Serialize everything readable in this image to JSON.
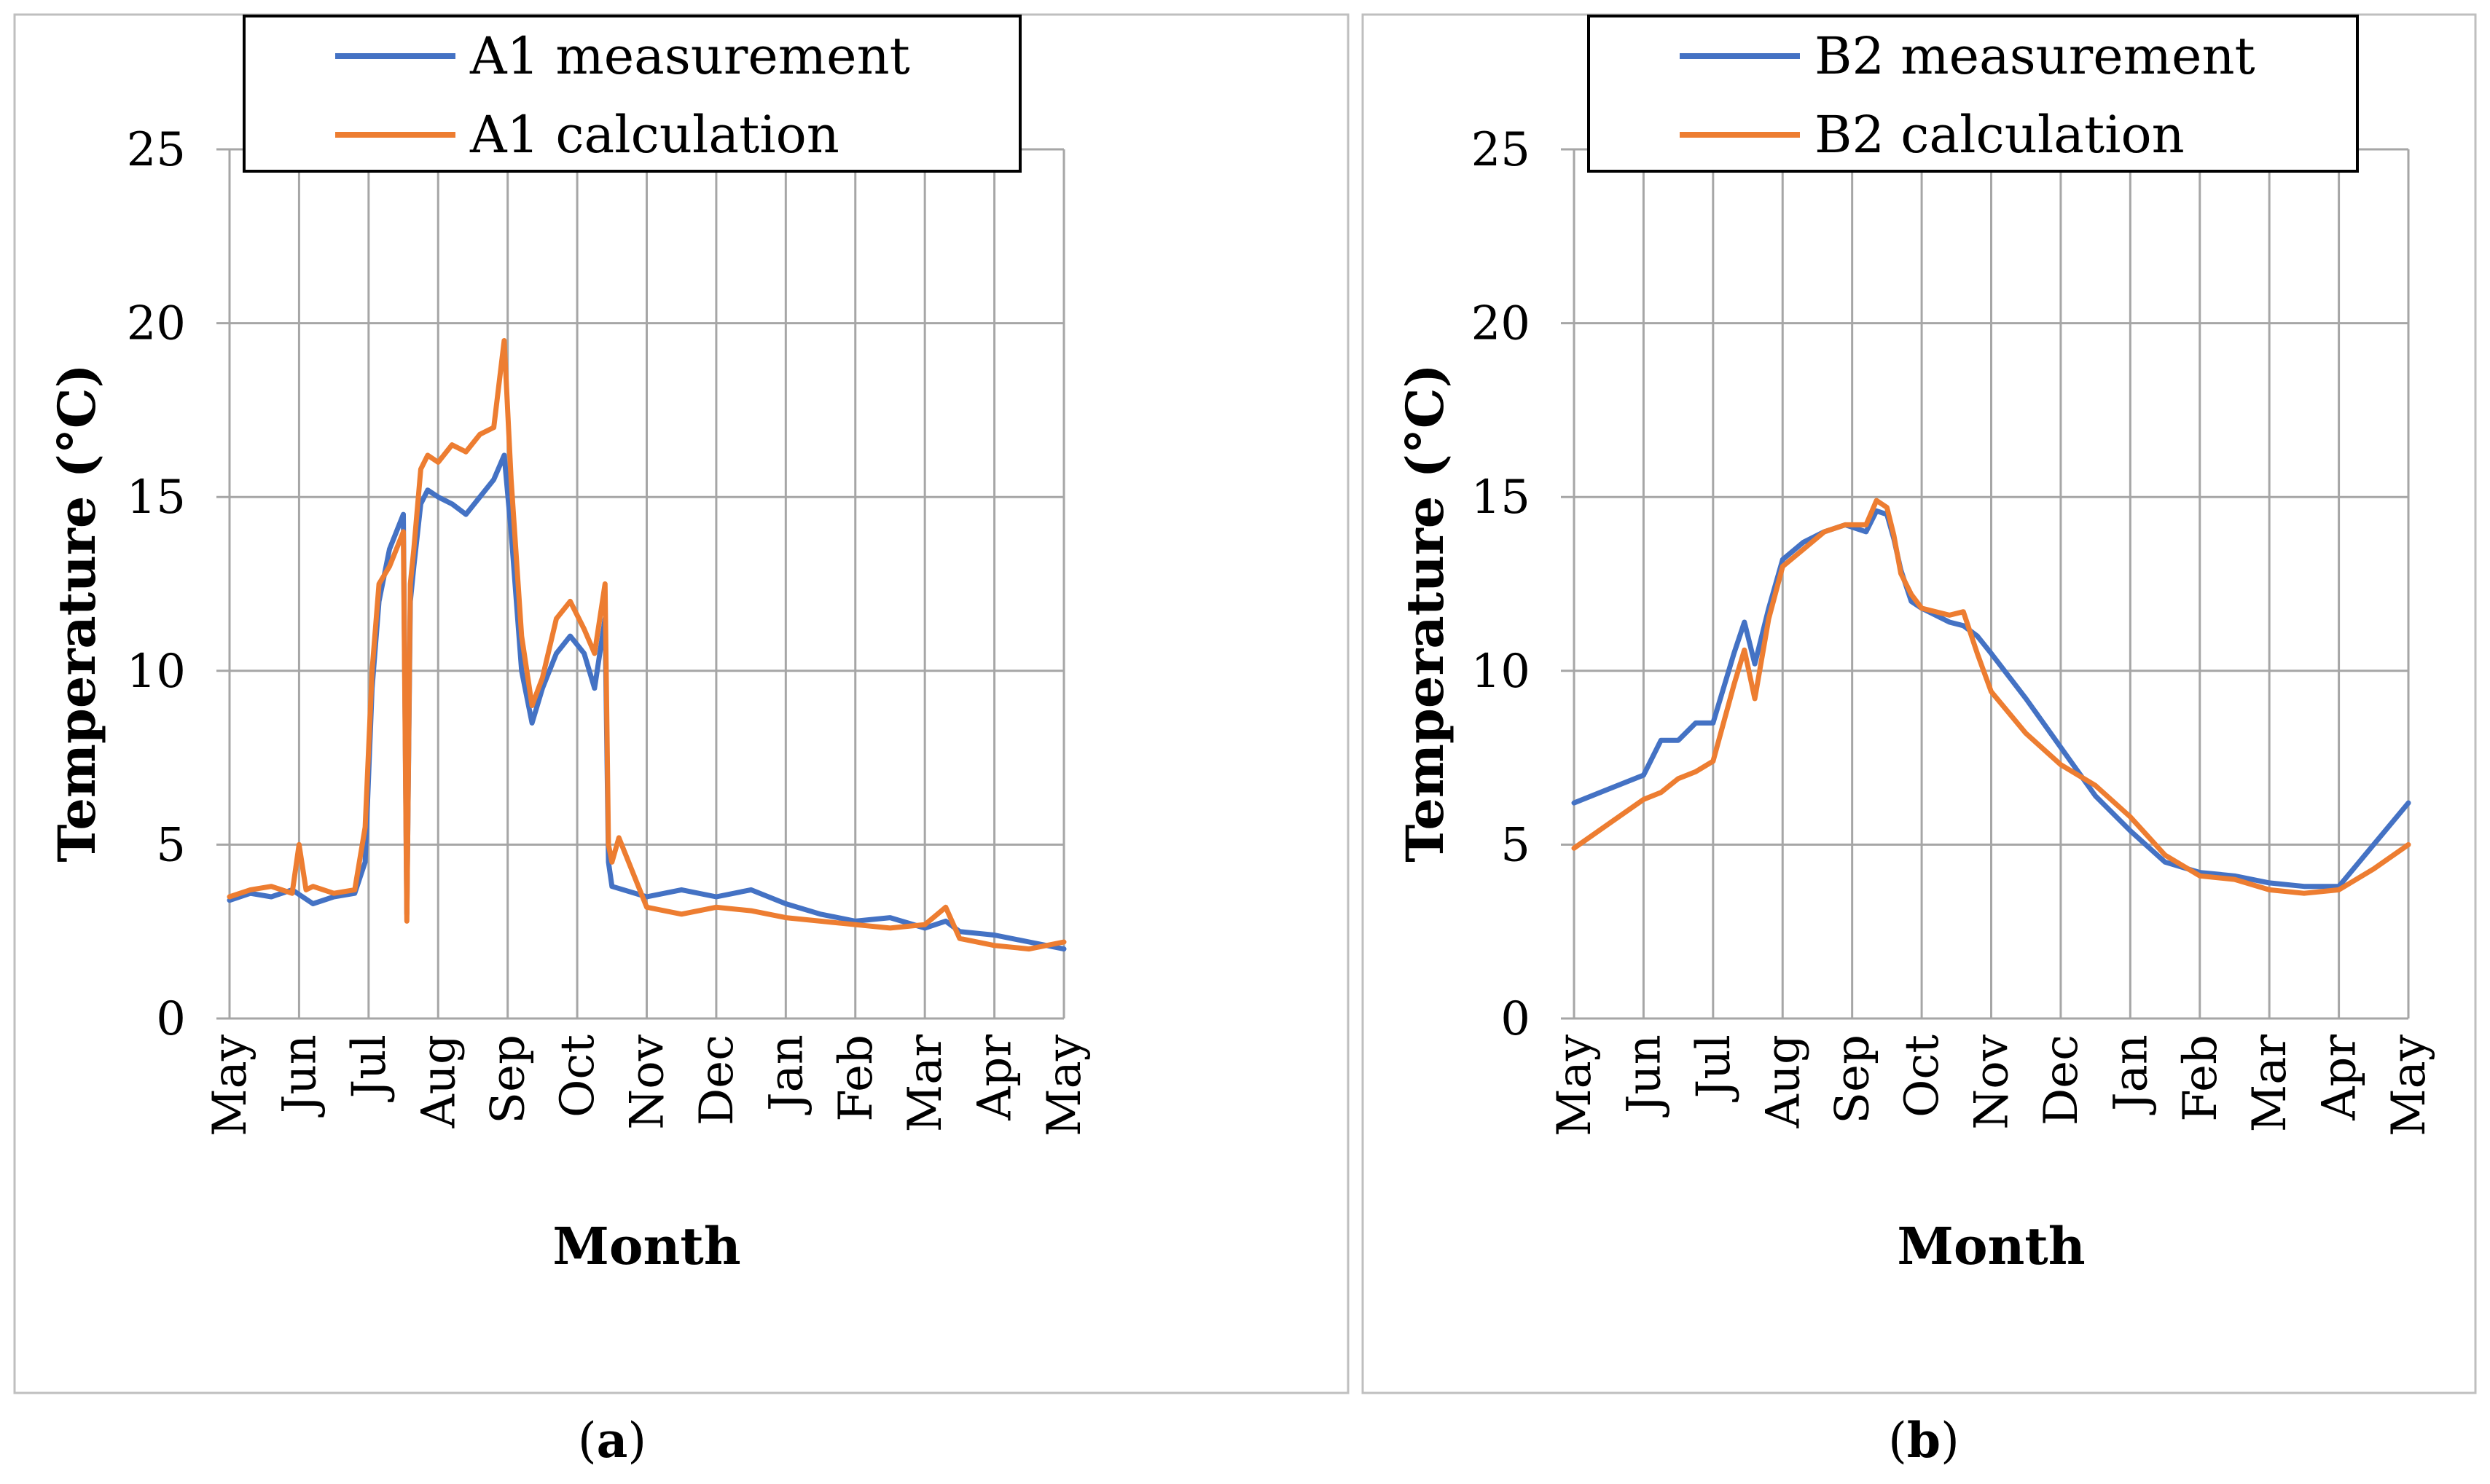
{
  "chart_data": [
    {
      "type": "line",
      "panel_label": "a",
      "xlabel": "Month",
      "ylabel": "Temperature (°C)",
      "ylim": [
        0,
        25
      ],
      "yticks": [
        0,
        5,
        10,
        15,
        20,
        25
      ],
      "x_ticks": [
        "May",
        "Jun",
        "Jul",
        "Aug",
        "Sep",
        "Oct",
        "Nov",
        "Dec",
        "Jan",
        "Feb",
        "Mar",
        "Apr",
        "May"
      ],
      "xlim": [
        0,
        12
      ],
      "grid": true,
      "legend_position": "top",
      "series": [
        {
          "name": "A1 measurement",
          "color": "#4472C4",
          "x": [
            0,
            0.3,
            0.6,
            0.9,
            1.2,
            1.5,
            1.8,
            1.95,
            2.05,
            2.15,
            2.3,
            2.5,
            2.55,
            2.6,
            2.65,
            2.75,
            2.85,
            3.0,
            3.2,
            3.4,
            3.6,
            3.8,
            3.95,
            4.05,
            4.2,
            4.35,
            4.5,
            4.7,
            4.9,
            5.1,
            5.25,
            5.4,
            5.45,
            5.5,
            6.0,
            6.5,
            7.0,
            7.5,
            8.0,
            8.5,
            9.0,
            9.5,
            10.0,
            10.3,
            10.5,
            11.0,
            11.5,
            12.0
          ],
          "y": [
            3.4,
            3.6,
            3.5,
            3.7,
            3.3,
            3.5,
            3.6,
            4.5,
            9.5,
            12.0,
            13.5,
            14.5,
            3.0,
            12.0,
            13.0,
            14.8,
            15.2,
            15.0,
            14.8,
            14.5,
            15.0,
            15.5,
            16.2,
            14.0,
            10.0,
            8.5,
            9.5,
            10.5,
            11.0,
            10.5,
            9.5,
            11.5,
            4.5,
            3.8,
            3.5,
            3.7,
            3.5,
            3.7,
            3.3,
            3.0,
            2.8,
            2.9,
            2.6,
            2.8,
            2.5,
            2.4,
            2.2,
            2.0
          ]
        },
        {
          "name": "A1 calculation",
          "color": "#ED7D31",
          "x": [
            0,
            0.3,
            0.6,
            0.9,
            1.0,
            1.1,
            1.2,
            1.5,
            1.8,
            1.95,
            2.05,
            2.15,
            2.3,
            2.5,
            2.55,
            2.6,
            2.65,
            2.75,
            2.85,
            3.0,
            3.2,
            3.4,
            3.6,
            3.8,
            3.95,
            4.05,
            4.2,
            4.35,
            4.5,
            4.7,
            4.9,
            5.1,
            5.25,
            5.4,
            5.45,
            5.5,
            5.6,
            6.0,
            6.5,
            7.0,
            7.5,
            8.0,
            8.5,
            9.0,
            9.5,
            10.0,
            10.3,
            10.5,
            11.0,
            11.5,
            12.0
          ],
          "y": [
            3.5,
            3.7,
            3.8,
            3.6,
            5.0,
            3.7,
            3.8,
            3.6,
            3.7,
            5.5,
            10.0,
            12.5,
            13.0,
            14.0,
            2.8,
            12.5,
            13.5,
            15.8,
            16.2,
            16.0,
            16.5,
            16.3,
            16.8,
            17.0,
            19.5,
            15.5,
            11.0,
            9.0,
            9.8,
            11.5,
            12.0,
            11.2,
            10.5,
            12.5,
            5.0,
            4.5,
            5.2,
            3.2,
            3.0,
            3.2,
            3.1,
            2.9,
            2.8,
            2.7,
            2.6,
            2.7,
            3.2,
            2.3,
            2.1,
            2.0,
            2.2
          ]
        }
      ]
    },
    {
      "type": "line",
      "panel_label": "b",
      "xlabel": "Month",
      "ylabel": "Temperature (°C)",
      "ylim": [
        0,
        25
      ],
      "yticks": [
        0,
        5,
        10,
        15,
        20,
        25
      ],
      "x_ticks": [
        "May",
        "Jun",
        "Jul",
        "Aug",
        "Sep",
        "Oct",
        "Nov",
        "Dec",
        "Jan",
        "Feb",
        "Mar",
        "Apr",
        "May"
      ],
      "xlim": [
        0,
        12
      ],
      "grid": true,
      "legend_position": "top",
      "series": [
        {
          "name": "B2 measurement",
          "color": "#4472C4",
          "x": [
            0,
            0.5,
            1.0,
            1.25,
            1.5,
            1.75,
            2.0,
            2.3,
            2.45,
            2.6,
            2.8,
            3.0,
            3.3,
            3.6,
            3.9,
            4.2,
            4.35,
            4.5,
            4.6,
            4.7,
            4.85,
            5.0,
            5.4,
            5.6,
            5.8,
            6.0,
            6.5,
            7.0,
            7.5,
            8.0,
            8.5,
            9.0,
            9.5,
            10.0,
            10.5,
            11.0,
            11.5,
            12.0
          ],
          "y": [
            6.2,
            6.6,
            7.0,
            8.0,
            8.0,
            8.5,
            8.5,
            10.5,
            11.4,
            10.2,
            11.8,
            13.2,
            13.7,
            14.0,
            14.2,
            14.0,
            14.6,
            14.5,
            13.8,
            12.9,
            12.0,
            11.8,
            11.4,
            11.3,
            11.0,
            10.5,
            9.2,
            7.8,
            6.4,
            5.4,
            4.5,
            4.2,
            4.1,
            3.9,
            3.8,
            3.8,
            5.0,
            6.2
          ]
        },
        {
          "name": "B2 calculation",
          "color": "#ED7D31",
          "x": [
            0,
            0.5,
            1.0,
            1.25,
            1.5,
            1.75,
            2.0,
            2.3,
            2.45,
            2.6,
            2.8,
            3.0,
            3.3,
            3.6,
            3.9,
            4.2,
            4.35,
            4.5,
            4.6,
            4.7,
            4.85,
            5.0,
            5.4,
            5.6,
            5.8,
            6.0,
            6.5,
            7.0,
            7.5,
            8.0,
            8.5,
            9.0,
            9.5,
            10.0,
            10.5,
            11.0,
            11.5,
            12.0
          ],
          "y": [
            4.9,
            5.6,
            6.3,
            6.5,
            6.9,
            7.1,
            7.4,
            9.6,
            10.6,
            9.2,
            11.5,
            13.0,
            13.5,
            14.0,
            14.2,
            14.2,
            14.9,
            14.7,
            13.9,
            12.8,
            12.2,
            11.8,
            11.6,
            11.7,
            10.5,
            9.4,
            8.2,
            7.3,
            6.7,
            5.8,
            4.7,
            4.1,
            4.0,
            3.7,
            3.6,
            3.7,
            4.3,
            5.0
          ]
        }
      ]
    }
  ]
}
